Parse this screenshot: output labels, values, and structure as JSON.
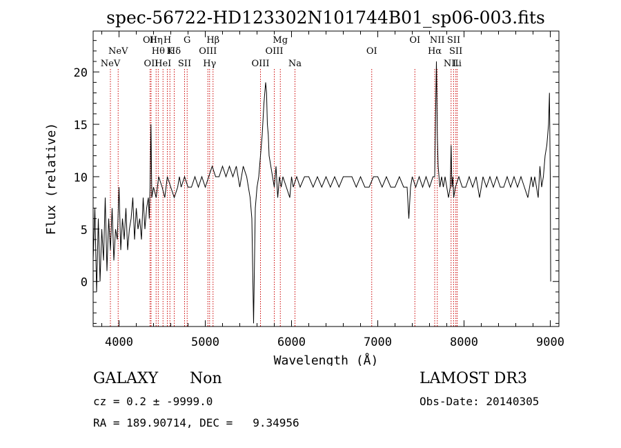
{
  "title": "spec-56722-HD123302N101744B01_sp06-003.fits",
  "footer": {
    "object_class": "GALAXY",
    "subclass": "Non",
    "cz_line": "cz = 0.2 ± -9999.0",
    "coords_line": "RA = 189.90714, DEC =   9.34956",
    "survey": "LAMOST DR3",
    "obs_date": "Obs-Date: 20140305"
  },
  "chart_data": {
    "type": "line",
    "title": "spec-56722-HD123302N101744B01_sp06-003.fits",
    "xlabel": "Wavelength (Å)",
    "ylabel": "Flux (relative)",
    "xlim": [
      3700,
      9100
    ],
    "ylim": [
      -4.3,
      23.9
    ],
    "xticks": [
      4000,
      5000,
      6000,
      7000,
      8000,
      9000
    ],
    "yticks": [
      0,
      5,
      10,
      15,
      20
    ],
    "grid": false,
    "line_color": "#000000",
    "marker_color": "#cc0000",
    "series": [
      {
        "name": "spectrum",
        "x": [
          3700,
          3720,
          3740,
          3760,
          3780,
          3800,
          3820,
          3840,
          3860,
          3880,
          3900,
          3920,
          3940,
          3960,
          3980,
          4000,
          4020,
          4040,
          4060,
          4080,
          4100,
          4120,
          4140,
          4160,
          4180,
          4200,
          4220,
          4240,
          4260,
          4280,
          4300,
          4320,
          4340,
          4350,
          4360,
          4370,
          4380,
          4400,
          4430,
          4460,
          4500,
          4530,
          4560,
          4600,
          4640,
          4680,
          4700,
          4720,
          4760,
          4800,
          4840,
          4880,
          4920,
          4960,
          5000,
          5040,
          5080,
          5120,
          5160,
          5200,
          5240,
          5280,
          5320,
          5360,
          5400,
          5440,
          5480,
          5520,
          5540,
          5560,
          5580,
          5600,
          5620,
          5640,
          5660,
          5680,
          5700,
          5710,
          5720,
          5730,
          5740,
          5760,
          5780,
          5800,
          5820,
          5840,
          5860,
          5880,
          5900,
          5940,
          5980,
          6000,
          6020,
          6060,
          6100,
          6150,
          6200,
          6250,
          6300,
          6350,
          6400,
          6450,
          6500,
          6550,
          6600,
          6650,
          6700,
          6750,
          6800,
          6850,
          6900,
          6950,
          7000,
          7050,
          7100,
          7150,
          7200,
          7250,
          7300,
          7340,
          7360,
          7380,
          7400,
          7440,
          7480,
          7520,
          7560,
          7600,
          7640,
          7660,
          7670,
          7680,
          7690,
          7700,
          7720,
          7740,
          7760,
          7780,
          7800,
          7820,
          7840,
          7850,
          7860,
          7870,
          7880,
          7900,
          7940,
          7980,
          8020,
          8060,
          8100,
          8140,
          8180,
          8220,
          8260,
          8300,
          8340,
          8380,
          8420,
          8460,
          8500,
          8540,
          8580,
          8620,
          8660,
          8700,
          8740,
          8780,
          8800,
          8820,
          8840,
          8860,
          8880,
          8900,
          8920,
          8940,
          8960,
          8980,
          8990,
          9000,
          9005
        ],
        "values": [
          2,
          7,
          -1,
          6,
          0,
          5,
          2,
          8,
          1,
          6,
          3,
          7,
          2,
          5,
          4,
          9,
          3,
          6,
          4,
          7,
          3,
          5,
          6,
          8,
          4,
          7,
          5,
          6,
          4,
          8,
          5,
          7,
          8,
          6,
          9,
          15,
          8,
          9,
          8,
          10,
          9,
          8,
          10,
          9,
          8,
          9,
          10,
          9,
          10,
          9,
          9,
          10,
          9,
          10,
          9,
          10,
          11,
          10,
          10,
          11,
          10,
          11,
          10,
          11,
          9,
          11,
          10,
          8,
          6,
          -4,
          7,
          9,
          10,
          12,
          14,
          17,
          19,
          18,
          15,
          14,
          12,
          11,
          10,
          9,
          11,
          8,
          10,
          9,
          10,
          9,
          8,
          10,
          9,
          10,
          9,
          10,
          10,
          9,
          10,
          9,
          10,
          9,
          10,
          9,
          10,
          10,
          10,
          9,
          10,
          9,
          9,
          10,
          10,
          9,
          10,
          9,
          9,
          10,
          9,
          9,
          6,
          9,
          10,
          9,
          10,
          9,
          10,
          9,
          10,
          10,
          16,
          21,
          14,
          11,
          9,
          10,
          9,
          10,
          9,
          8,
          9,
          13,
          9,
          10,
          8,
          9,
          10,
          9,
          9,
          10,
          9,
          10,
          8,
          10,
          9,
          10,
          9,
          10,
          9,
          9,
          10,
          9,
          10,
          9,
          10,
          9,
          8,
          10,
          9,
          10,
          9,
          8,
          11,
          9,
          10,
          12,
          13,
          15,
          18,
          10,
          0
        ]
      }
    ],
    "line_markers": [
      {
        "label": "NeV",
        "x": 3900,
        "row": 3
      },
      {
        "label": "NeV",
        "x": 3990,
        "row": 2
      },
      {
        "label": "OII",
        "x": 4360,
        "row": 1
      },
      {
        "label": "OII",
        "x": 4372,
        "row": 3
      },
      {
        "label": "Hη",
        "x": 4430,
        "row": 1
      },
      {
        "label": "Hθ",
        "x": 4455,
        "row": 2
      },
      {
        "label": "HeI",
        "x": 4510,
        "row": 3
      },
      {
        "label": "H",
        "x": 4560,
        "row": 1
      },
      {
        "label": "K",
        "x": 4590,
        "row": 2
      },
      {
        "label": "Hδ",
        "x": 4640,
        "row": 2
      },
      {
        "label": "SII",
        "x": 4760,
        "row": 3
      },
      {
        "label": "G",
        "x": 4790,
        "row": 1
      },
      {
        "label": "OIII",
        "x": 5030,
        "row": 2
      },
      {
        "label": "Hγ",
        "x": 5050,
        "row": 3
      },
      {
        "label": "Hβ",
        "x": 5090,
        "row": 1
      },
      {
        "label": "OIII",
        "x": 5640,
        "row": 3
      },
      {
        "label": "OIII",
        "x": 5800,
        "row": 2
      },
      {
        "label": "Mg",
        "x": 5870,
        "row": 1
      },
      {
        "label": "Na",
        "x": 6040,
        "row": 3
      },
      {
        "label": "OI",
        "x": 6930,
        "row": 2
      },
      {
        "label": "OI",
        "x": 7430,
        "row": 1
      },
      {
        "label": "Hα",
        "x": 7660,
        "row": 2
      },
      {
        "label": "NII",
        "x": 7690,
        "row": 1
      },
      {
        "label": "NII",
        "x": 7850,
        "row": 3
      },
      {
        "label": "SII",
        "x": 7880,
        "row": 1
      },
      {
        "label": "SII",
        "x": 7905,
        "row": 2
      },
      {
        "label": "Li",
        "x": 7920,
        "row": 3
      }
    ]
  }
}
